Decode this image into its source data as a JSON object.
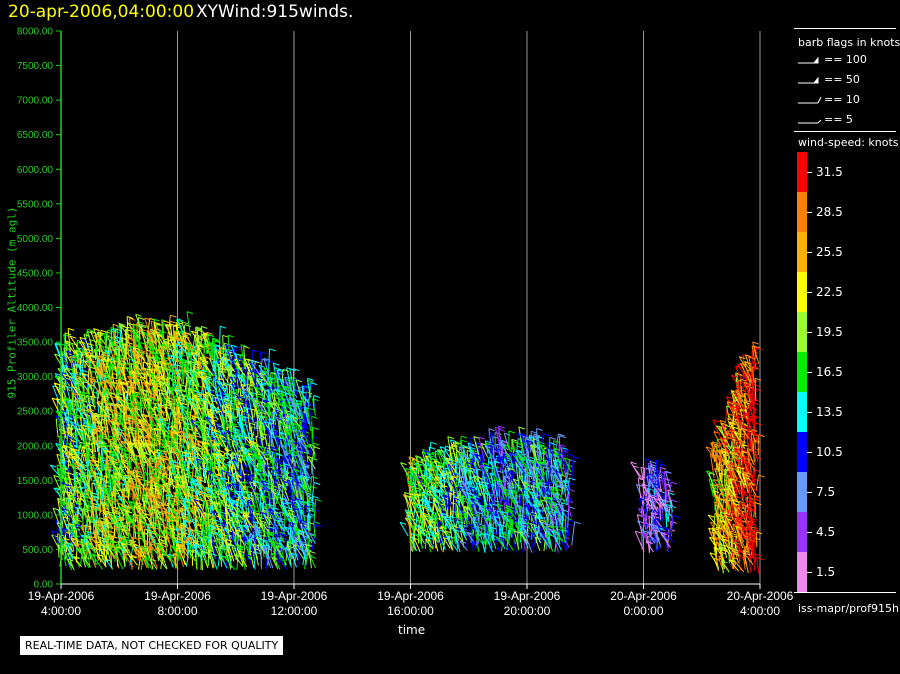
{
  "header": {
    "datetime": "20-apr-2006,04:00:00",
    "plot_name": "XYWind:915winds."
  },
  "notice": "REAL-TIME DATA, NOT CHECKED FOR QUALITY",
  "source": "iss-mapr/prof915h",
  "colors": {
    "axis": "#22cc22",
    "gridline": "#999999",
    "date_title": "#ffff00"
  },
  "legend": {
    "barb_title": "barb flags in knots",
    "barbs": [
      {
        "label": "== 100",
        "value": 100
      },
      {
        "label": "== 50",
        "value": 50
      },
      {
        "label": "== 10",
        "value": 10
      },
      {
        "label": "== 5",
        "value": 5
      }
    ],
    "speed_title": "wind-speed: knots",
    "speed_scale": [
      {
        "label": "31.5",
        "color": "#ff0000"
      },
      {
        "label": "28.5",
        "color": "#ff7f00"
      },
      {
        "label": "25.5",
        "color": "#ffb000"
      },
      {
        "label": "22.5",
        "color": "#ffff00"
      },
      {
        "label": "19.5",
        "color": "#99ff33"
      },
      {
        "label": "16.5",
        "color": "#00ee00"
      },
      {
        "label": "13.5",
        "color": "#00ffff"
      },
      {
        "label": "10.5",
        "color": "#0000ff"
      },
      {
        "label": "7.5",
        "color": "#6699ff"
      },
      {
        "label": "4.5",
        "color": "#9933ff"
      },
      {
        "label": "1.5",
        "color": "#ee88ee"
      }
    ]
  },
  "chart_data": {
    "type": "scatter",
    "title": "XYWind:915winds.",
    "xlabel": "time",
    "ylabel": "915 Profiler Altitude (m agl)",
    "x_range_hours": [
      4,
      28
    ],
    "ylim": [
      0,
      8000
    ],
    "y_ticks": [
      "0.00",
      "500.00",
      "1000.00",
      "1500.00",
      "2000.00",
      "2500.00",
      "3000.00",
      "3500.00",
      "4000.00",
      "4500.00",
      "5000.00",
      "5500.00",
      "6000.00",
      "6500.00",
      "7000.00",
      "7500.00",
      "8000.00"
    ],
    "x_ticks": [
      {
        "date": "19-Apr-2006",
        "time": "4:00:00",
        "hour": 4
      },
      {
        "date": "19-Apr-2006",
        "time": "8:00:00",
        "hour": 8
      },
      {
        "date": "19-Apr-2006",
        "time": "12:00:00",
        "hour": 12
      },
      {
        "date": "19-Apr-2006",
        "time": "16:00:00",
        "hour": 16
      },
      {
        "date": "19-Apr-2006",
        "time": "20:00:00",
        "hour": 20
      },
      {
        "date": "20-Apr-2006",
        "time": "0:00:00",
        "hour": 24
      },
      {
        "date": "20-Apr-2006",
        "time": "4:00:00",
        "hour": 28
      }
    ],
    "grid": "vertical",
    "barb_units": "knots",
    "series": [
      {
        "hours": [
          4.0,
          5.5,
          7.0,
          8.5,
          10.0,
          11.5,
          12.7
        ],
        "top_m": [
          3300,
          3400,
          3600,
          3500,
          3200,
          2900,
          2600
        ],
        "base_m": 200,
        "speed_knots": [
          16.5,
          19.5,
          22.5,
          19.5,
          16.5,
          13.5,
          13.5
        ]
      },
      {
        "hours": [
          16.0,
          17.5,
          19.0,
          20.5,
          21.5
        ],
        "top_m": [
          1600,
          1800,
          1900,
          1900,
          1700
        ],
        "base_m": 450,
        "speed_knots": [
          19.5,
          16.5,
          10.5,
          13.5,
          10.5
        ]
      },
      {
        "hours": [
          24.0,
          25.0
        ],
        "top_m": [
          1500,
          1400
        ],
        "base_m": 450,
        "speed_knots": [
          4.5,
          7.5
        ]
      },
      {
        "hours": [
          26.5,
          27.5,
          27.9
        ],
        "top_m": [
          1800,
          3000,
          3300
        ],
        "base_m": 150,
        "speed_knots": [
          22.5,
          28.5,
          31.5
        ]
      }
    ]
  }
}
